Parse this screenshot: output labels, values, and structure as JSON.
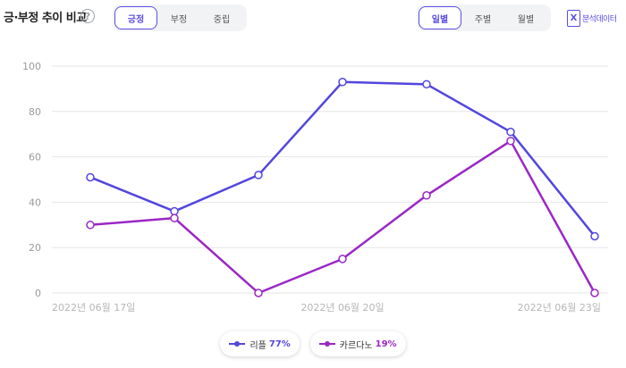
{
  "header": {
    "title": "긍·부정 추이 비교",
    "help_icon": "?",
    "sentiment_tabs": [
      {
        "label": "긍정",
        "active": true
      },
      {
        "label": "부정",
        "active": false
      },
      {
        "label": "중립",
        "active": false
      }
    ],
    "period_tabs": [
      {
        "label": "일별",
        "active": true
      },
      {
        "label": "주별",
        "active": false
      },
      {
        "label": "월별",
        "active": false
      }
    ],
    "export": {
      "icon": "excel-icon",
      "icon_glyph": "X",
      "label": "분석데이터"
    }
  },
  "colors": {
    "accent": "#5b4ee0",
    "series_1": "#5346de",
    "series_2": "#9b27c4",
    "grid": "#e6e6e6"
  },
  "chart_data": {
    "type": "line",
    "title": "",
    "xlabel": "",
    "ylabel": "",
    "ylim": [
      0,
      100
    ],
    "yticks": [
      0,
      20,
      40,
      60,
      80,
      100
    ],
    "grid": true,
    "x": [
      "2022년 06월 17일",
      "",
      "",
      "2022년 06월 20일",
      "",
      "",
      "2022년 06월 23일"
    ],
    "x_tick_labels": [
      "2022년 06월 17일",
      "2022년 06월 20일",
      "2022년 06월 23일"
    ],
    "series": [
      {
        "name": "리플",
        "share": "77%",
        "color": "#5346de",
        "values": [
          51,
          36,
          52,
          93,
          92,
          71,
          25
        ]
      },
      {
        "name": "카르다노",
        "share": "19%",
        "color": "#9b27c4",
        "values": [
          30,
          33,
          0,
          15,
          43,
          67,
          0
        ]
      }
    ],
    "legend_position": "bottom"
  }
}
